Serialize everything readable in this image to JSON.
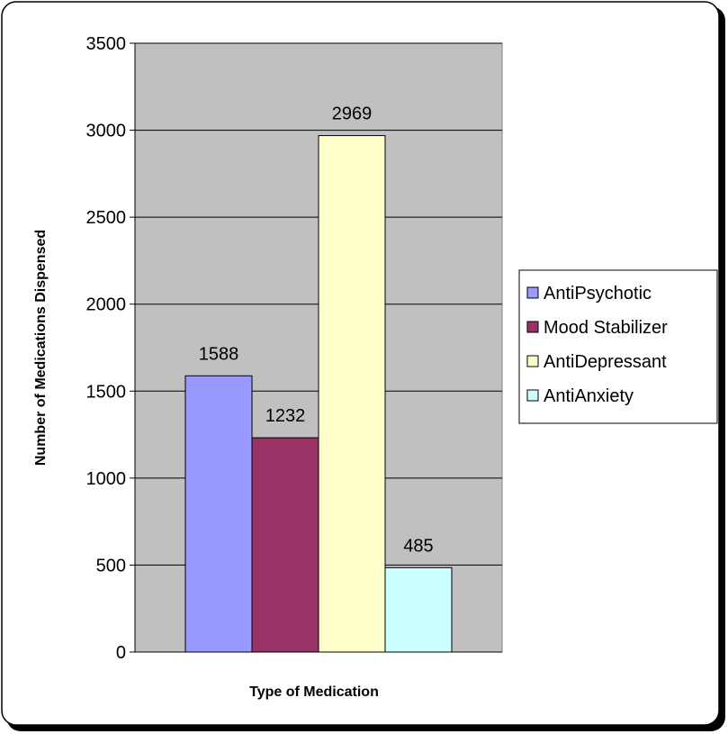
{
  "chart_data": {
    "type": "bar",
    "title": "",
    "xlabel": "Type of Medication",
    "ylabel": "Number of Medications Dispensed",
    "ylim": [
      0,
      3500
    ],
    "yticks": [
      0,
      500,
      1000,
      1500,
      2000,
      2500,
      3000,
      3500
    ],
    "grid": true,
    "legend_position": "right",
    "series": [
      {
        "name": "AntiPsychotic",
        "value": 1588,
        "color": "#9999ff"
      },
      {
        "name": "Mood Stabilizer",
        "value": 1232,
        "color": "#993366"
      },
      {
        "name": "AntiDepressant",
        "value": 2969,
        "color": "#ffffcc"
      },
      {
        "name": "AntiAnxiety",
        "value": 485,
        "color": "#ccffff"
      }
    ],
    "colors": {
      "plot_background": "#c0c0c0",
      "gridline": "#000000",
      "frame_border": "#000000"
    }
  }
}
